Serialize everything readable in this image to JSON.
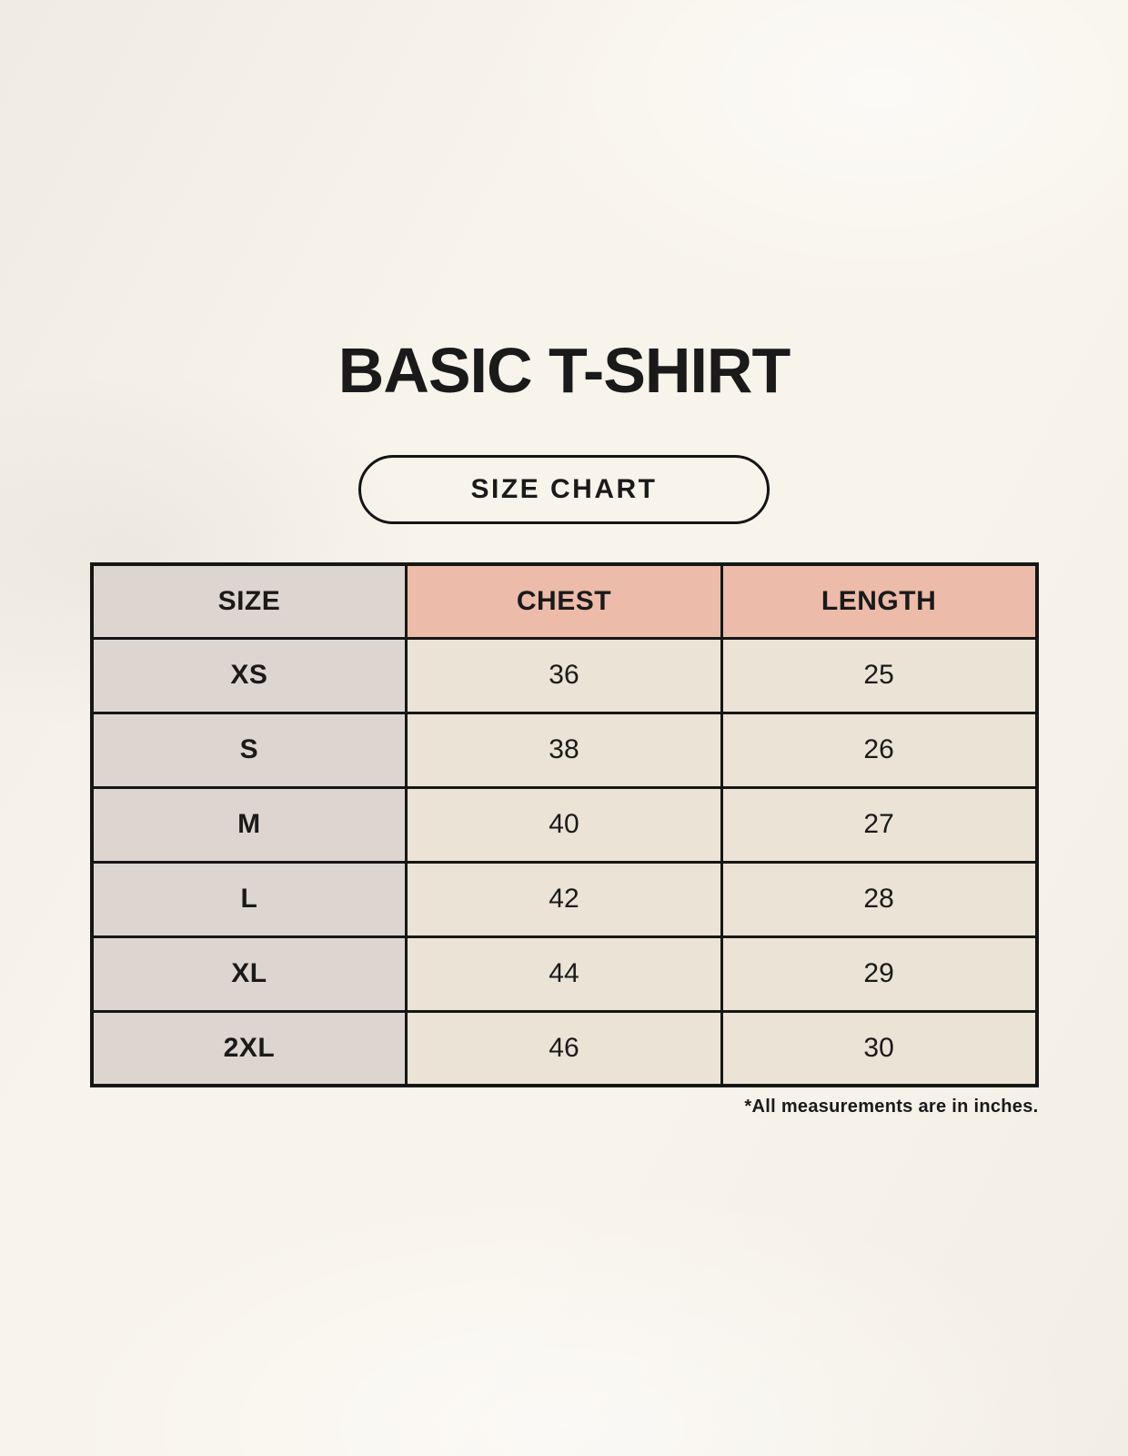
{
  "header": {
    "title": "BASIC T-SHIRT",
    "badge_label": "SIZE CHART"
  },
  "chart_data": {
    "type": "table",
    "title": "BASIC T-SHIRT",
    "subtitle": "SIZE CHART",
    "columns": [
      "SIZE",
      "CHEST",
      "LENGTH"
    ],
    "rows": [
      {
        "size": "XS",
        "chest": "36",
        "length": "25"
      },
      {
        "size": "S",
        "chest": "38",
        "length": "26"
      },
      {
        "size": "M",
        "chest": "40",
        "length": "27"
      },
      {
        "size": "L",
        "chest": "42",
        "length": "28"
      },
      {
        "size": "XL",
        "chest": "44",
        "length": "29"
      },
      {
        "size": "2XL",
        "chest": "46",
        "length": "30"
      }
    ],
    "units": "inches"
  },
  "footer": {
    "note": "*All measurements are in inches."
  },
  "colors": {
    "background": "#f8f4ec",
    "accent_header": "#edbbaa",
    "size_column": "#ddd5cf",
    "data_cell": "#eae3d6",
    "table_border": "#161616",
    "text": "#1a1a1a"
  }
}
